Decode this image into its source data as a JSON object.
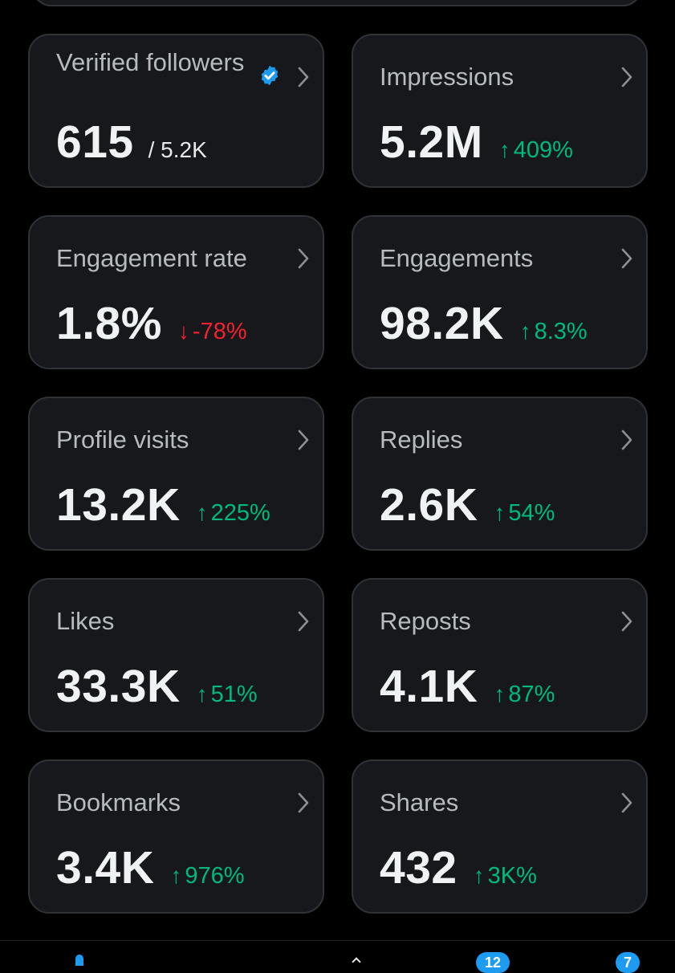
{
  "colors": {
    "background": "#000000",
    "card": "#16181c",
    "border": "#2f3336",
    "label": "#b6bbc0",
    "value": "#eff3f4",
    "positive": "#00ba7c",
    "negative": "#f4212e",
    "accent": "#1d9bf0"
  },
  "metrics": [
    {
      "label": "Verified followers",
      "value": "615",
      "total": "/ 5.2K",
      "icon": "verified-badge-icon"
    },
    {
      "label": "Impressions",
      "value": "5.2M",
      "change": "409%",
      "direction": "up"
    },
    {
      "label": "Engagement rate",
      "value": "1.8%",
      "change": "-78%",
      "direction": "down"
    },
    {
      "label": "Engagements",
      "value": "98.2K",
      "change": "8.3%",
      "direction": "up"
    },
    {
      "label": "Profile visits",
      "value": "13.2K",
      "change": "225%",
      "direction": "up"
    },
    {
      "label": "Replies",
      "value": "2.6K",
      "change": "54%",
      "direction": "up"
    },
    {
      "label": "Likes",
      "value": "33.3K",
      "change": "51%",
      "direction": "up"
    },
    {
      "label": "Reposts",
      "value": "4.1K",
      "change": "87%",
      "direction": "up"
    },
    {
      "label": "Bookmarks",
      "value": "3.4K",
      "change": "976%",
      "direction": "up"
    },
    {
      "label": "Shares",
      "value": "432",
      "change": "3K%",
      "direction": "up"
    }
  ],
  "glyphs": {
    "up": "↑",
    "down": "↓"
  },
  "bottom_nav": {
    "items": [
      "home-icon",
      "search-icon",
      "notifications-icon",
      "messages-icon"
    ],
    "badges": [
      "12",
      "7"
    ]
  }
}
